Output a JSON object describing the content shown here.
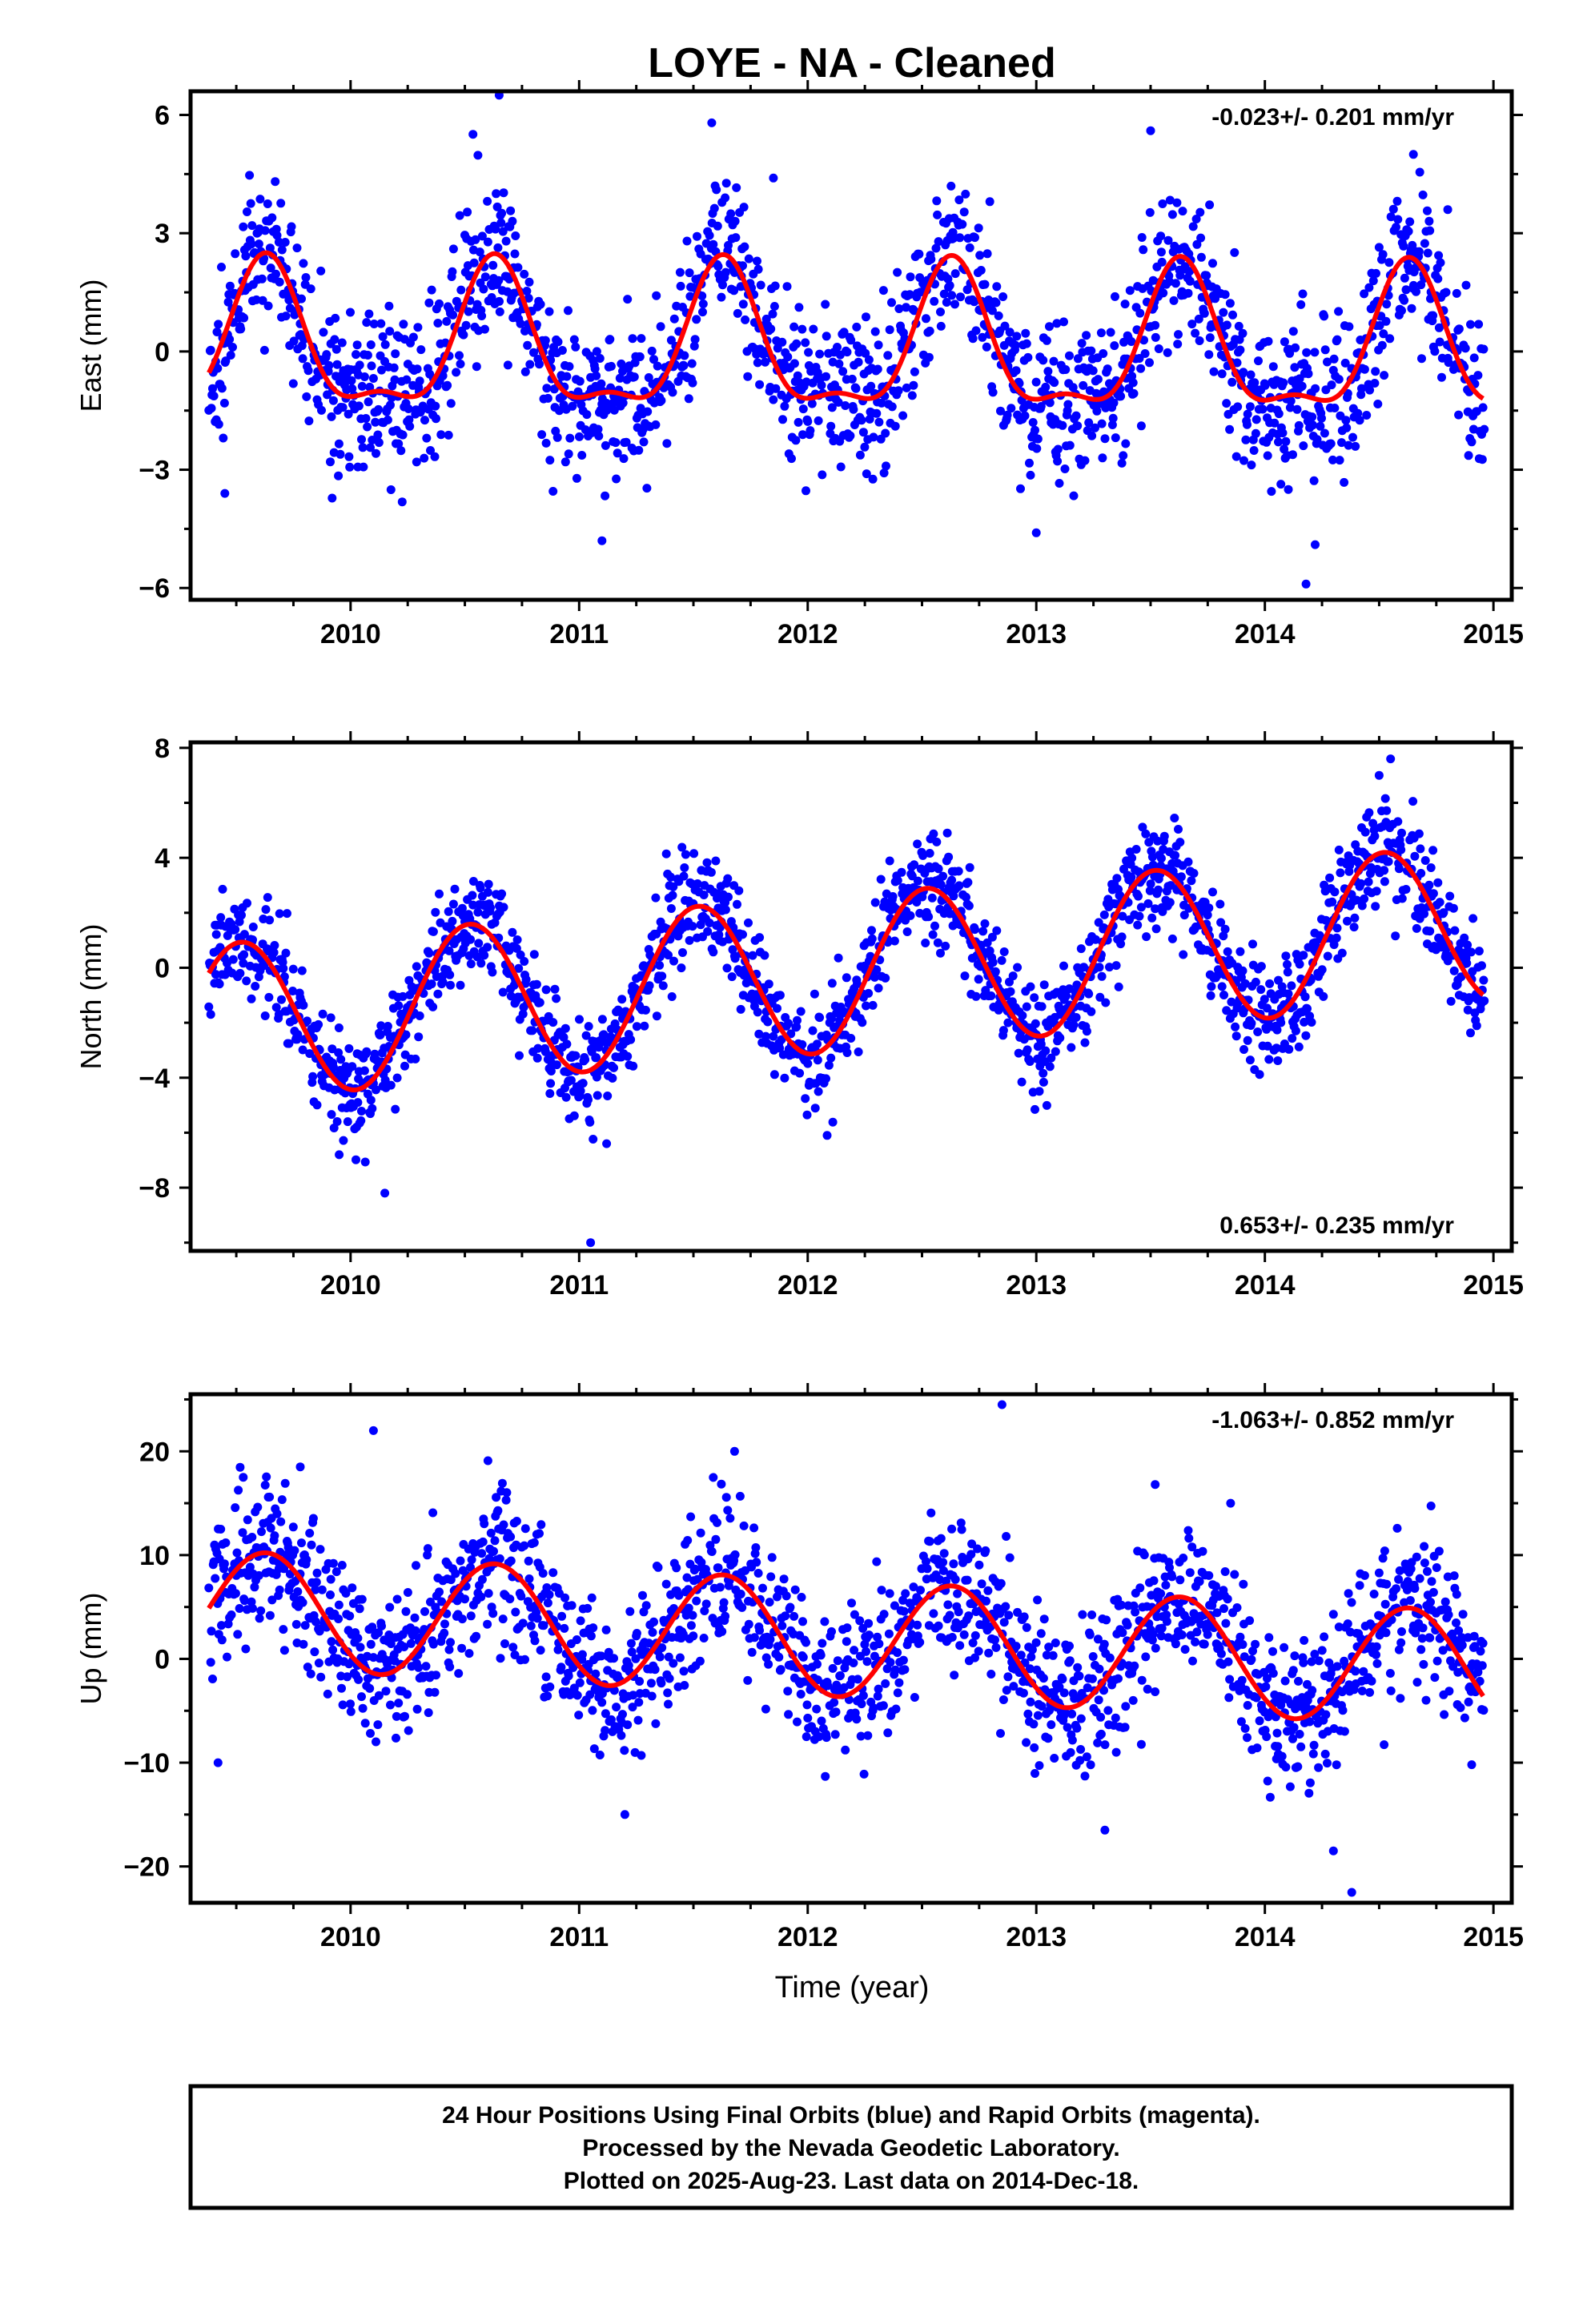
{
  "page": {
    "title": "LOYE  - NA - Cleaned",
    "xlabel": "Time (year)",
    "footer": [
      "24 Hour Positions Using Final Orbits (blue) and Rapid Orbits (magenta).",
      "Processed by the Nevada Geodetic Laboratory.",
      "Plotted on 2025-Aug-23. Last data on 2014-Dec-18."
    ]
  },
  "colors": {
    "points": "#0000ff",
    "fit": "#ff0000",
    "axis": "#000000"
  },
  "chart_data": [
    {
      "type": "scatter",
      "ylabel": "East (mm)",
      "rate": "-0.023+/- 0.201 mm/yr",
      "rate_position": "top-right",
      "xlim": [
        2009.3,
        2015.08
      ],
      "ylim": [
        -6.3,
        6.6
      ],
      "yticks": [
        -6,
        -3,
        0,
        3,
        6
      ],
      "ytick_labels": [
        "−6",
        "−3",
        "0",
        "3",
        "6"
      ],
      "xticks": [
        2010,
        2011,
        2012,
        2013,
        2014,
        2015
      ],
      "data_start": 2009.38,
      "data_end": 2014.96,
      "fit": {
        "offset": 0.05,
        "trend": -0.023,
        "annual_amp": 1.75,
        "annual_peak": 0.63,
        "semi_amp": 0.65,
        "semi_peak": 0.63
      },
      "scatter_sd": 1.0,
      "seed": 11,
      "fit_series_name": "",
      "points_series_name": "",
      "outliers": [
        [
          2010.65,
          6.5
        ],
        [
          2011.58,
          5.8
        ],
        [
          2011.85,
          4.4
        ],
        [
          2013.5,
          5.6
        ],
        [
          2014.65,
          5.0
        ],
        [
          2014.8,
          3.6
        ],
        [
          2011.1,
          -4.8
        ],
        [
          2013.0,
          -4.6
        ],
        [
          2014.18,
          -5.9
        ],
        [
          2014.22,
          -4.9
        ],
        [
          2009.45,
          -3.6
        ]
      ]
    },
    {
      "type": "scatter",
      "ylabel": "North (mm)",
      "rate": "0.653+/- 0.235 mm/yr",
      "rate_position": "bottom-right",
      "xlim": [
        2009.3,
        2015.08
      ],
      "ylim": [
        -10.3,
        8.2
      ],
      "yticks": [
        -8,
        -4,
        0,
        4,
        8
      ],
      "ytick_labels": [
        "−8",
        "−4",
        "0",
        "4",
        "8"
      ],
      "xticks": [
        2010,
        2011,
        2012,
        2013,
        2014,
        2015
      ],
      "data_start": 2009.38,
      "data_end": 2014.96,
      "fit": {
        "offset": -0.3,
        "trend": 0.653,
        "annual_amp": 2.85,
        "annual_peak": 0.52,
        "semi_amp": 0.0,
        "semi_peak": 0.0
      },
      "scatter_sd": 0.95,
      "seed": 23,
      "fit_series_name": "",
      "points_series_name": "",
      "outliers": [
        [
          2010.15,
          -8.2
        ],
        [
          2011.05,
          -10.0
        ],
        [
          2011.12,
          -6.4
        ],
        [
          2014.55,
          7.6
        ],
        [
          2014.5,
          7.0
        ],
        [
          2009.95,
          -6.8
        ]
      ]
    },
    {
      "type": "scatter",
      "ylabel": "Up (mm)",
      "rate": "-1.063+/- 0.852 mm/yr",
      "rate_position": "top-right",
      "xlim": [
        2009.3,
        2015.08
      ],
      "ylim": [
        -23.5,
        25.5
      ],
      "yticks": [
        -20,
        -10,
        0,
        10,
        20
      ],
      "ytick_labels": [
        "−20",
        "−10",
        "0",
        "10",
        "20"
      ],
      "xticks": [
        2010,
        2011,
        2012,
        2013,
        2014,
        2015
      ],
      "data_start": 2009.38,
      "data_end": 2014.96,
      "fit": {
        "offset": 2.1,
        "trend": -1.063,
        "annual_amp": 5.6,
        "annual_peak": 0.63,
        "semi_amp": 0.0,
        "semi_peak": 0.0
      },
      "scatter_sd": 3.6,
      "seed": 37,
      "fit_series_name": "",
      "points_series_name": "",
      "outliers": [
        [
          2010.1,
          22.0
        ],
        [
          2012.85,
          24.5
        ],
        [
          2011.68,
          20.0
        ],
        [
          2009.78,
          18.5
        ],
        [
          2014.38,
          -22.5
        ],
        [
          2014.3,
          -18.5
        ],
        [
          2013.3,
          -16.5
        ],
        [
          2011.2,
          -15.0
        ],
        [
          2009.42,
          -10.0
        ],
        [
          2013.52,
          16.8
        ],
        [
          2013.85,
          15.0
        ]
      ]
    }
  ]
}
